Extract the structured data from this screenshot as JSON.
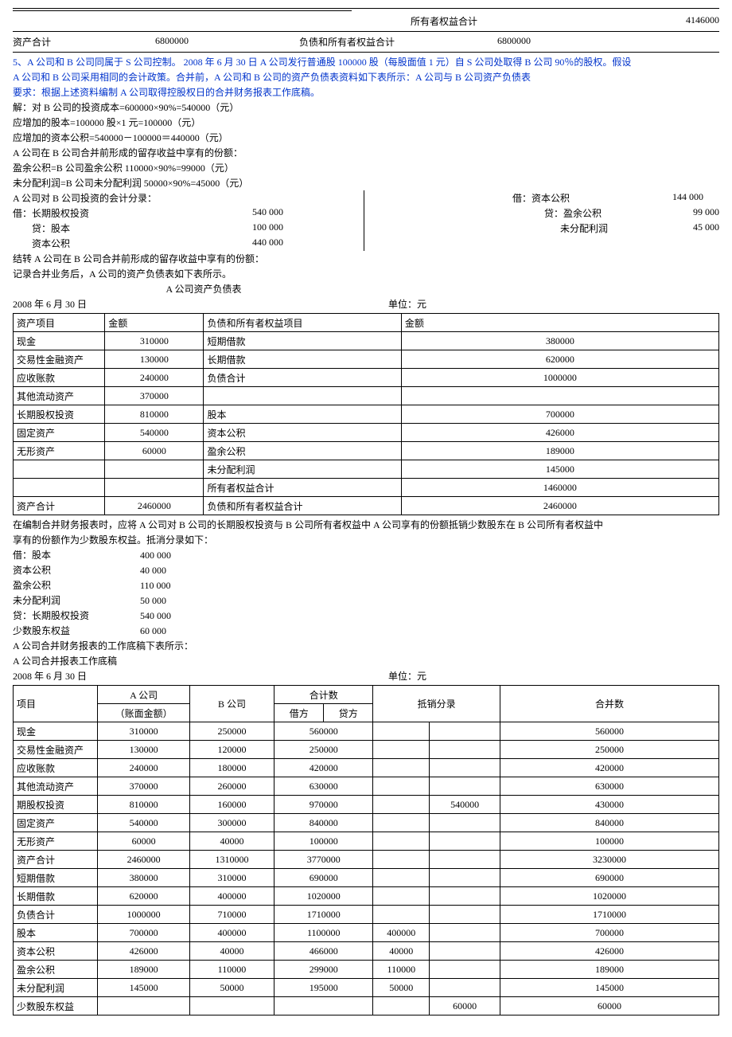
{
  "top": {
    "owners_equity_label": "所有者权益合计",
    "owners_equity_value": "4146000",
    "assets_total_label": "资产合计",
    "assets_total_value": "6800000",
    "liab_eq_label": "负债和所有者权益合计",
    "liab_eq_value": "6800000"
  },
  "question": {
    "line1": "5、A 公司和 B 公司同属于 S 公司控制。 2008 年 6 月 30 日 A 公司发行普通股 100000 股（每股面值 1 元）自 S 公司处取得 B 公司 90％的股权。假设",
    "line2": "A 公司和 B 公司采用相同的会计政策。合并前，A 公司和 B 公司的资产负债表资料如下表所示：A 公司与 B 公司资产负债表",
    "line3": "要求：根据上述资料编制 A 公司取得控股权日的合并财务报表工作底稿。"
  },
  "solution": {
    "l1": "解：对 B 公司的投资成本=600000×90%=540000（元）",
    "l2": "应增加的股本=100000 股×1 元=100000（元）",
    "l3": "应增加的资本公积=540000－100000＝440000（元）",
    "l4": "A 公司在 B 公司合并前形成的留存收益中享有的份额：",
    "l5": "盈余公积=B 公司盈余公积 110000×90%=99000（元）",
    "l6": "未分配利润=B 公司未分配利润 50000×90%=45000（元）",
    "l7": "A 公司对 B 公司投资的会计分录：",
    "entries_left": [
      {
        "lbl": "借：长期股权投资",
        "amt": "540 000"
      },
      {
        "lbl": "贷：股本",
        "amt": "100 000"
      },
      {
        "lbl": "资本公积",
        "amt": "440 000"
      }
    ],
    "entries_right_pre": "借：资本公积",
    "entries_right_pre_amt": "144 000",
    "entries_right": [
      {
        "lbl": "贷：盈余公积",
        "amt": "99 000"
      },
      {
        "lbl": "未分配利润",
        "amt": "45 000"
      }
    ],
    "l8": "结转 A 公司在 B 公司合并前形成的留存收益中享有的份额：",
    "l9": "记录合并业务后，A 公司的资产负债表如下表所示。"
  },
  "table1": {
    "title": "A 公司资产负债表",
    "date": "2008 年 6 月 30 日",
    "unit": "单位：元",
    "headers": [
      "资产项目",
      "金额",
      "负债和所有者权益项目",
      "金额"
    ],
    "rows": [
      [
        "现金",
        "310000",
        "短期借款",
        "380000"
      ],
      [
        "交易性金融资产",
        "130000",
        "长期借款",
        "620000"
      ],
      [
        "应收账款",
        "240000",
        "负债合计",
        "1000000"
      ],
      [
        "其他流动资产",
        "370000",
        "",
        ""
      ],
      [
        "长期股权投资",
        "810000",
        "股本",
        "700000"
      ],
      [
        "固定资产",
        "540000",
        "资本公积",
        "426000"
      ],
      [
        "无形资产",
        "60000",
        "盈余公积",
        "189000"
      ],
      [
        "",
        "",
        "未分配利润",
        "145000"
      ],
      [
        "",
        "",
        "所有者权益合计",
        "1460000"
      ],
      [
        "资产合计",
        "2460000",
        "负债和所有者权益合计",
        "2460000"
      ]
    ]
  },
  "elim": {
    "p1": "在编制合并财务报表时，应将 A 公司对 B 公司的长期股权投资与 B 公司所有者权益中 A 公司享有的份额抵销少数股东在 B 公司所有者权益中",
    "p2": "享有的份额作为少数股东权益。抵消分录如下：",
    "lines": [
      {
        "lbl": "借：股本",
        "amt": "400 000"
      },
      {
        "lbl": "资本公积",
        "amt": "40 000"
      },
      {
        "lbl": "盈余公积",
        "amt": "110 000"
      },
      {
        "lbl": "未分配利润",
        "amt": "50 000"
      },
      {
        "lbl": "贷：长期股权投资",
        "amt": "540 000"
      },
      {
        "lbl": "少数股东权益",
        "amt": "60 000"
      }
    ],
    "p3": "A 公司合并财务报表的工作底稿下表所示：",
    "p4": "A 公司合并报表工作底稿"
  },
  "table2": {
    "date": "2008 年 6 月 30 日",
    "unit": "单位：元",
    "h_item": "项目",
    "h_a": "A 公司",
    "h_a2": "（账面金额）",
    "h_b": "B 公司",
    "h_sum": "合计数",
    "h_dr": "借方",
    "h_cr": "贷方",
    "h_elim": "抵销分录",
    "h_cons": "合并数",
    "rows": [
      [
        "现金",
        "310000",
        "250000",
        "560000",
        "",
        "",
        "",
        "560000"
      ],
      [
        "交易性金融资产",
        "130000",
        "120000",
        "250000",
        "",
        "",
        "",
        "250000"
      ],
      [
        "应收账款",
        "240000",
        "180000",
        "420000",
        "",
        "",
        "",
        "420000"
      ],
      [
        "其他流动资产",
        "370000",
        "260000",
        "630000",
        "",
        "",
        "",
        "630000"
      ],
      [
        "期股权投资",
        "810000",
        "160000",
        "970000",
        "",
        "",
        "540000",
        "430000"
      ],
      [
        "固定资产",
        "540000",
        "300000",
        "840000",
        "",
        "",
        "",
        "840000"
      ],
      [
        "无形资产",
        "60000",
        "40000",
        "100000",
        "",
        "",
        "",
        "100000"
      ],
      [
        "资产合计",
        "2460000",
        "1310000",
        "3770000",
        "",
        "",
        "",
        "3230000"
      ],
      [
        "短期借款",
        "380000",
        "310000",
        "690000",
        "",
        "",
        "",
        "690000"
      ],
      [
        "长期借款",
        "620000",
        "400000",
        "1020000",
        "",
        "",
        "",
        "1020000"
      ],
      [
        "负债合计",
        "1000000",
        "710000",
        "1710000",
        "",
        "",
        "",
        "1710000"
      ],
      [
        "股本",
        "700000",
        "400000",
        "1100000",
        "",
        "400000",
        "",
        "700000"
      ],
      [
        "资本公积",
        "426000",
        "40000",
        "466000",
        "",
        "40000",
        "",
        "426000"
      ],
      [
        "盈余公积",
        "189000",
        "110000",
        "299000",
        "",
        "110000",
        "",
        "189000"
      ],
      [
        "未分配利润",
        "145000",
        "50000",
        "195000",
        "",
        "50000",
        "",
        "145000"
      ],
      [
        "少数股东权益",
        "",
        "",
        "",
        "",
        "",
        "60000",
        "60000"
      ]
    ]
  }
}
